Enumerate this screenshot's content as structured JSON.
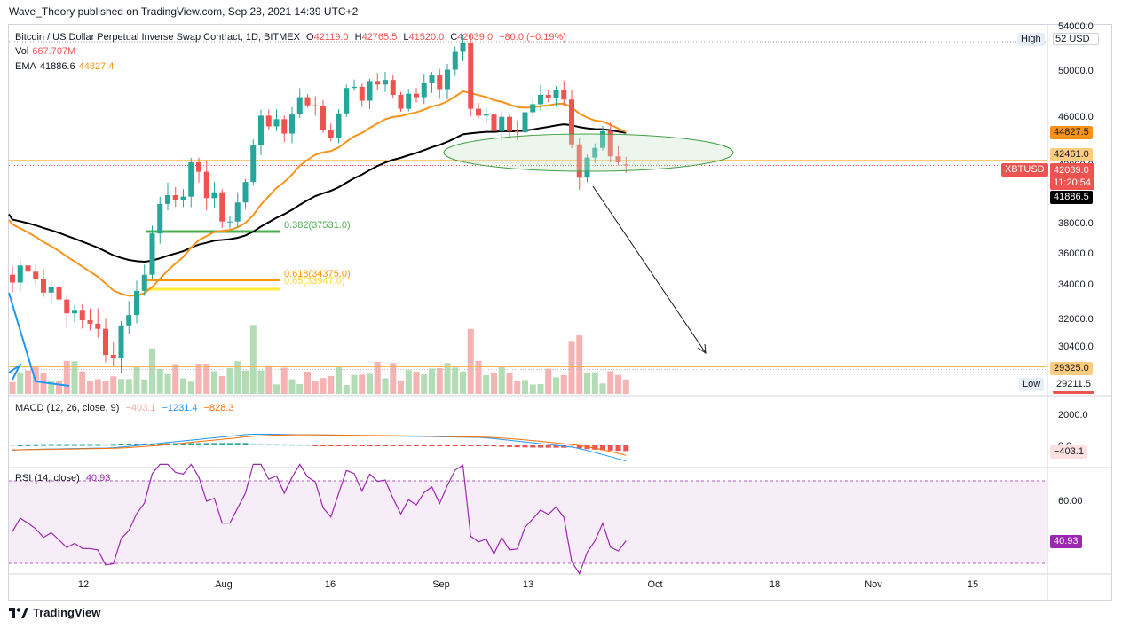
{
  "publisher_line": "Wave_Theory published on TradingView.com, Sep 28, 2021 14:39 UTC+2",
  "footer_brand": "TradingView",
  "colors": {
    "up": "#26a69a",
    "down": "#ef5350",
    "ema_fast": "#f7931a",
    "ema_slow": "#000000",
    "fib382": "#4caf50",
    "fib618": "#ff9800",
    "fib65": "#ffeb3b",
    "rsi": "#9c27b0",
    "macd": "#2196f3",
    "signal": "#ff6d00"
  },
  "main_legend": {
    "symbol": "Bitcoin / US Dollar Perpetual Inverse Swap Contract, 1D, BITMEX",
    "o_label": "O",
    "o": "42119.0",
    "h_label": "H",
    "h": "42765.5",
    "l_label": "L",
    "l": "41520.0",
    "c_label": "C",
    "c": "42039.0",
    "change": "−80.0 (−0.19%)",
    "vol_label": "Vol",
    "vol": "667.707M",
    "ema_label": "EMA",
    "ema_slow": "41886.6",
    "ema_fast": "44827.4"
  },
  "currency": "USD",
  "high_label": "High",
  "high_value": "52",
  "low_label": "Low",
  "low_value": "29211.5",
  "symbol_tag": "XBTUSD",
  "price_tags": {
    "ema_fast": "44827.5",
    "level": "42461.0",
    "last": "42039.0",
    "countdown": "11:20:54",
    "ema_slow": "41886.5",
    "support": "29325.0"
  },
  "fib_labels": {
    "f382": "0.382(37531.0)",
    "f618": "0.618(34375.0)",
    "f65": "0.65(33947.0)"
  },
  "price_axis": [
    "54000.0",
    "50000.0",
    "46000.0",
    "42000.0",
    "38000.0",
    "36000.0",
    "34000.0",
    "32000.0",
    "30400.0"
  ],
  "time_axis": [
    "12",
    "Aug",
    "16",
    "Sep",
    "13",
    "Oct",
    "18",
    "Nov",
    "15"
  ],
  "macd_legend": {
    "name": "MACD (12, 26, close, 9)",
    "hist": "−403.1",
    "macd": "−1231.4",
    "signal": "−828.3"
  },
  "macd_axis": [
    "2000.0",
    "0.0"
  ],
  "macd_tag": "−403.1",
  "rsi_legend": {
    "name": "RSI (14, close)",
    "value": "40.93"
  },
  "rsi_axis": [
    "60.00"
  ],
  "rsi_tag": "40.93",
  "chart_data": {
    "type": "candlestick",
    "title": "Bitcoin / US Dollar Perpetual Inverse Swap Contract, 1D, BITMEX",
    "y_axis_ticks": [
      30400,
      32000,
      34000,
      36000,
      38000,
      42000,
      46000,
      50000,
      54000
    ],
    "x_ticks": [
      "12",
      "Aug",
      "16",
      "Sep",
      "13",
      "Oct",
      "18",
      "Nov",
      "15"
    ],
    "last_candle": {
      "open": 42119.0,
      "high": 42765.5,
      "low": 41520.0,
      "close": 42039.0
    },
    "closes": [
      34200,
      35300,
      34900,
      34400,
      33600,
      33900,
      33200,
      32400,
      32600,
      32000,
      31800,
      31500,
      30000,
      29800,
      31700,
      32300,
      33700,
      34700,
      37400,
      39400,
      40000,
      39700,
      39900,
      42300,
      41600,
      39800,
      40200,
      38200,
      38200,
      39500,
      40900,
      43700,
      46200,
      45300,
      45900,
      44700,
      46300,
      47800,
      47100,
      47000,
      45000,
      44300,
      46400,
      48600,
      48700,
      47500,
      49200,
      48900,
      49300,
      48000,
      46800,
      48100,
      47800,
      49000,
      49700,
      48500,
      50200,
      51800,
      52600,
      46800,
      46200,
      46300,
      44900,
      46100,
      44900,
      44800,
      46500,
      47200,
      48000,
      47700,
      48400,
      47600,
      43800,
      41200,
      42700,
      43500,
      44900,
      42800,
      42300,
      42039
    ],
    "series": [
      {
        "name": "EMA",
        "label": "41886.6",
        "values_start": 38500,
        "values_end": 41886.6
      },
      {
        "name": "EMA",
        "label": "44827.4",
        "values_start": 38400,
        "values_end": 44827.4
      }
    ],
    "fib_levels": [
      {
        "ratio": 0.382,
        "price": 37531.0
      },
      {
        "ratio": 0.618,
        "price": 34375.0
      },
      {
        "ratio": 0.65,
        "price": 33947.0
      }
    ],
    "horizontal_levels": [
      42461.0,
      29325.0
    ],
    "volume_last": "667.707M",
    "macd": {
      "hist": -403.1,
      "macd": -1231.4,
      "signal": -828.3
    },
    "rsi": {
      "period": 14,
      "last": 40.93
    }
  }
}
